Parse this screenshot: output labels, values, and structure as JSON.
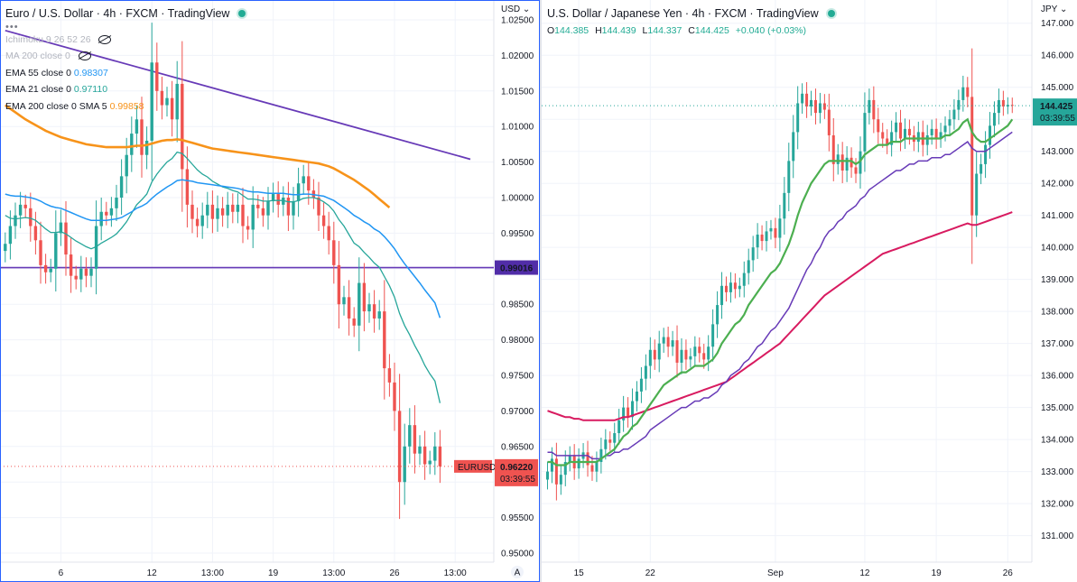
{
  "left": {
    "title": "Euro / U.S. Dollar · 4h · FXCM · TradingView",
    "currency": "USD",
    "indicators": [
      {
        "label": "Ichimoku 9 26 52 26",
        "value": "",
        "color": "#b2b5be",
        "hidden": true
      },
      {
        "label": "MA 200 close 0",
        "value": "",
        "color": "#b2b5be",
        "hidden": true
      },
      {
        "label": "EMA 55 close 0",
        "value": "0.98307",
        "color": "#2196f3",
        "hidden": false
      },
      {
        "label": "EMA 21 close 0",
        "value": "0.97110",
        "color": "#26a69a",
        "hidden": false
      },
      {
        "label": "EMA 200 close 0 SMA 5",
        "value": "0.99858",
        "color": "#f7931a",
        "hidden": false
      }
    ],
    "hline_label": "0.99016",
    "symbol_tag": "EURUSD",
    "price_tag": "0.96220",
    "countdown": "03:39:55",
    "auto_button": "A",
    "chart_data": {
      "type": "candlestick",
      "ylim": [
        0.95,
        1.025
      ],
      "y_ticks": [
        "1.02500",
        "1.02000",
        "1.01500",
        "1.01000",
        "1.00500",
        "1.00000",
        "0.99500",
        "0.99000",
        "0.98500",
        "0.98000",
        "0.97500",
        "0.97000",
        "0.96500",
        "0.96000",
        "0.95500",
        "0.95000"
      ],
      "x_ticks": [
        {
          "label": "6",
          "bar": 11
        },
        {
          "label": "12",
          "bar": 29
        },
        {
          "label": "13:00",
          "bar": 41
        },
        {
          "label": "19",
          "bar": 53
        },
        {
          "label": "13:00",
          "bar": 65
        },
        {
          "label": "26",
          "bar": 77
        },
        {
          "label": "13:00",
          "bar": 89
        }
      ],
      "last_price": 0.9622,
      "horizontal_line": 0.99016,
      "trendline": [
        {
          "bar": 0,
          "price": 1.0235
        },
        {
          "bar": 92,
          "price": 1.0054
        }
      ],
      "closes": [
        0.9935,
        0.996,
        0.9975,
        0.999,
        0.9985,
        0.996,
        0.994,
        0.9905,
        0.9895,
        0.99,
        0.995,
        0.9965,
        0.992,
        0.989,
        0.9885,
        0.99,
        0.989,
        0.99,
        0.996,
        0.998,
        0.9975,
        0.9985,
        1.0,
        1.003,
        1.006,
        1.009,
        1.011,
        1.006,
        1.008,
        1.019,
        1.015,
        1.013,
        1.014,
        1.011,
        1.016,
        1.004,
        0.999,
        0.997,
        0.996,
        0.9975,
        0.999,
        0.997,
        0.9985,
        0.9975,
        0.999,
        0.998,
        0.999,
        0.996,
        0.9955,
        0.999,
        0.9985,
        0.9975,
        0.9995,
        1.0005,
        0.999,
        1.0,
        0.9975,
        0.9995,
        1.002,
        1.003,
        1.001,
        1.0,
        0.9975,
        0.996,
        0.994,
        0.9905,
        0.985,
        0.986,
        0.983,
        0.982,
        0.988,
        0.984,
        0.985,
        0.983,
        0.984,
        0.976,
        0.974,
        0.97,
        0.96,
        0.965,
        0.968,
        0.964,
        0.965,
        0.9625,
        0.963,
        0.965,
        0.9622
      ],
      "ema21": [
        0.9975,
        0.9971,
        0.997,
        0.9971,
        0.9972,
        0.9971,
        0.9968,
        0.9962,
        0.9956,
        0.9951,
        0.9951,
        0.9952,
        0.9949,
        0.9944,
        0.9939,
        0.9935,
        0.9931,
        0.9928,
        0.9931,
        0.9936,
        0.994,
        0.9944,
        0.9949,
        0.9957,
        0.9966,
        0.9978,
        0.999,
        0.9997,
        1.0005,
        1.0022,
        1.0033,
        1.0042,
        1.005,
        1.0055,
        1.0064,
        1.0062,
        1.0055,
        1.0047,
        1.0039,
        1.0033,
        1.0029,
        1.0023,
        1.0019,
        1.0015,
        1.0013,
        1.001,
        1.0008,
        1.0003,
        0.9998,
        0.9998,
        0.9997,
        0.9995,
        0.9995,
        0.9996,
        0.9996,
        0.9996,
        0.9994,
        0.9994,
        0.9996,
        0.9999,
        1.0,
        1.0,
        0.9998,
        0.9994,
        0.9989,
        0.9981,
        0.9969,
        0.996,
        0.9948,
        0.9936,
        0.9931,
        0.9923,
        0.9916,
        0.9908,
        0.9902,
        0.9889,
        0.9876,
        0.986,
        0.9837,
        0.982,
        0.9807,
        0.9792,
        0.9779,
        0.9764,
        0.9752,
        0.9742,
        0.9711
      ],
      "ema55": [
        1.0005,
        1.0003,
        1.0002,
        1.0002,
        1.0001,
        1.0,
        0.9998,
        0.9995,
        0.9991,
        0.9988,
        0.9986,
        0.9985,
        0.9982,
        0.9979,
        0.9976,
        0.9973,
        0.997,
        0.9968,
        0.9968,
        0.9968,
        0.9968,
        0.9969,
        0.997,
        0.9972,
        0.9976,
        0.998,
        0.9985,
        0.9988,
        0.9992,
        0.9999,
        1.0005,
        1.001,
        1.0015,
        1.0019,
        1.0024,
        1.0025,
        1.0024,
        1.0023,
        1.0021,
        1.002,
        1.0019,
        1.0018,
        1.0017,
        1.0016,
        1.0015,
        1.0014,
        1.0013,
        1.0011,
        1.0009,
        1.0008,
        1.0008,
        1.0007,
        1.0006,
        1.0006,
        1.0006,
        1.0006,
        1.0005,
        1.0004,
        1.0004,
        1.0005,
        1.0005,
        1.0004,
        1.0003,
        1.0002,
        0.9999,
        0.9996,
        0.9991,
        0.9986,
        0.9981,
        0.9975,
        0.9971,
        0.9966,
        0.9962,
        0.9956,
        0.9952,
        0.9945,
        0.9937,
        0.9928,
        0.9917,
        0.9907,
        0.9898,
        0.9889,
        0.988,
        0.987,
        0.9861,
        0.9852,
        0.9831
      ],
      "ema200_sma5": [
        1.013,
        1.0125,
        1.012,
        1.0115,
        1.011,
        1.0106,
        1.0102,
        1.0098,
        1.0094,
        1.0091,
        1.0088,
        1.0085,
        1.0083,
        1.0081,
        1.0079,
        1.0077,
        1.0075,
        1.0074,
        1.0073,
        1.0072,
        1.0071,
        1.0071,
        1.0071,
        1.0071,
        1.0071,
        1.0072,
        1.0073,
        1.0073,
        1.0074,
        1.0076,
        1.0078,
        1.008,
        1.0081,
        1.0081,
        1.0082,
        1.0081,
        1.0079,
        1.0077,
        1.0075,
        1.0073,
        1.0071,
        1.0069,
        1.0068,
        1.0067,
        1.0066,
        1.0065,
        1.0064,
        1.0063,
        1.0062,
        1.0061,
        1.006,
        1.0059,
        1.0058,
        1.0057,
        1.0056,
        1.0055,
        1.0054,
        1.0053,
        1.0052,
        1.0051,
        1.005,
        1.0049,
        1.0048,
        1.0046,
        1.0044,
        1.0041,
        1.0037,
        1.0033,
        1.0029,
        1.0025,
        1.002,
        1.0015,
        1.001,
        1.0004,
        0.9998,
        0.9992,
        0.9986
      ]
    }
  },
  "right": {
    "title": "U.S. Dollar / Japanese Yen · 4h · FXCM · TradingView",
    "currency": "JPY",
    "ohlc": {
      "o_label": "O",
      "o": "144.385",
      "h_label": "H",
      "h": "144.439",
      "l_label": "L",
      "l": "144.337",
      "c_label": "C",
      "c": "144.425",
      "change": "+0.040 (+0.03%)"
    },
    "price_tag": "144.425",
    "countdown": "03:39:55",
    "chart_data": {
      "type": "candlestick",
      "ylim": [
        130.2,
        147.5
      ],
      "y_ticks": [
        "147.000",
        "146.000",
        "145.000",
        "144.000",
        "143.000",
        "142.000",
        "141.000",
        "140.000",
        "139.000",
        "138.000",
        "137.000",
        "136.000",
        "135.000",
        "134.000",
        "133.000",
        "132.000",
        "131.000"
      ],
      "x_ticks": [
        {
          "label": "15",
          "bar": 7
        },
        {
          "label": "22",
          "bar": 23
        },
        {
          "label": "Sep",
          "bar": 51
        },
        {
          "label": "12",
          "bar": 71
        },
        {
          "label": "19",
          "bar": 87
        },
        {
          "label": "26",
          "bar": 103
        }
      ],
      "last_price": 144.425,
      "closes": [
        133.0,
        133.4,
        132.6,
        132.9,
        133.3,
        133.5,
        133.1,
        133.4,
        133.6,
        133.2,
        133.0,
        133.3,
        133.7,
        134.0,
        133.9,
        134.2,
        134.6,
        135.0,
        134.7,
        135.2,
        135.5,
        135.9,
        136.3,
        136.8,
        136.5,
        137.0,
        137.2,
        136.9,
        137.1,
        136.4,
        136.8,
        136.5,
        136.6,
        136.9,
        136.7,
        136.5,
        136.9,
        137.6,
        138.2,
        138.8,
        138.6,
        138.9,
        138.7,
        138.8,
        139.2,
        139.6,
        140.0,
        140.4,
        140.2,
        140.5,
        140.6,
        140.3,
        140.9,
        141.7,
        142.7,
        143.6,
        144.5,
        144.8,
        144.4,
        144.6,
        144.2,
        144.5,
        144.3,
        143.5,
        142.6,
        142.9,
        142.4,
        142.8,
        142.5,
        142.3,
        143.0,
        144.2,
        144.6,
        144.0,
        143.6,
        143.4,
        143.2,
        143.6,
        143.9,
        143.4,
        143.7,
        143.5,
        143.3,
        143.6,
        143.2,
        143.5,
        143.7,
        143.4,
        143.6,
        143.8,
        144.0,
        144.3,
        144.6,
        145.0,
        144.7,
        141.0,
        142.3,
        142.6,
        143.2,
        143.8,
        144.2,
        144.6,
        144.4,
        144.45,
        144.425
      ],
      "ema_green": [
        133.3,
        133.3,
        133.2,
        133.2,
        133.2,
        133.3,
        133.3,
        133.3,
        133.3,
        133.3,
        133.3,
        133.3,
        133.4,
        133.5,
        133.6,
        133.7,
        133.9,
        134.1,
        134.2,
        134.4,
        134.5,
        134.7,
        134.9,
        135.1,
        135.3,
        135.5,
        135.7,
        135.8,
        135.9,
        136.0,
        136.1,
        136.1,
        136.2,
        136.3,
        136.3,
        136.3,
        136.4,
        136.5,
        136.7,
        137.0,
        137.2,
        137.4,
        137.6,
        137.7,
        137.9,
        138.2,
        138.4,
        138.6,
        138.8,
        139.0,
        139.2,
        139.3,
        139.5,
        139.8,
        140.1,
        140.5,
        141.0,
        141.4,
        141.7,
        142.0,
        142.2,
        142.4,
        142.6,
        142.7,
        142.7,
        142.7,
        142.7,
        142.7,
        142.7,
        142.6,
        142.7,
        142.9,
        143.0,
        143.1,
        143.2,
        143.2,
        143.2,
        143.3,
        143.3,
        143.3,
        143.4,
        143.4,
        143.4,
        143.4,
        143.4,
        143.4,
        143.4,
        143.4,
        143.4,
        143.5,
        143.5,
        143.6,
        143.7,
        143.9,
        144.0,
        143.6,
        143.4,
        143.3,
        143.3,
        143.4,
        143.5,
        143.6,
        143.7,
        143.8,
        144.0
      ],
      "ema_purple": [
        133.6,
        133.6,
        133.5,
        133.5,
        133.5,
        133.5,
        133.5,
        133.5,
        133.5,
        133.5,
        133.4,
        133.4,
        133.4,
        133.5,
        133.5,
        133.6,
        133.6,
        133.7,
        133.7,
        133.8,
        133.9,
        134.0,
        134.1,
        134.3,
        134.4,
        134.5,
        134.6,
        134.7,
        134.8,
        134.9,
        135.0,
        135.0,
        135.1,
        135.2,
        135.2,
        135.3,
        135.3,
        135.4,
        135.5,
        135.7,
        135.8,
        136.0,
        136.1,
        136.2,
        136.4,
        136.5,
        136.7,
        136.9,
        137.0,
        137.2,
        137.4,
        137.5,
        137.7,
        137.9,
        138.1,
        138.4,
        138.7,
        139.0,
        139.3,
        139.5,
        139.8,
        140.0,
        140.3,
        140.5,
        140.6,
        140.8,
        140.9,
        141.1,
        141.2,
        141.3,
        141.5,
        141.6,
        141.8,
        141.9,
        142.0,
        142.1,
        142.2,
        142.3,
        142.4,
        142.4,
        142.5,
        142.6,
        142.6,
        142.7,
        142.7,
        142.7,
        142.8,
        142.8,
        142.8,
        142.9,
        142.9,
        143.0,
        143.1,
        143.2,
        143.3,
        143.1,
        143.0,
        143.0,
        143.0,
        143.1,
        143.2,
        143.3,
        143.4,
        143.5,
        143.6
      ],
      "ema_crimson": [
        134.9,
        134.85,
        134.8,
        134.75,
        134.7,
        134.7,
        134.65,
        134.65,
        134.6,
        134.6,
        134.6,
        134.6,
        134.6,
        134.6,
        134.6,
        134.6,
        134.65,
        134.7,
        134.7,
        134.75,
        134.8,
        134.85,
        134.9,
        134.95,
        135.0,
        135.05,
        135.1,
        135.15,
        135.2,
        135.25,
        135.3,
        135.35,
        135.4,
        135.45,
        135.5,
        135.55,
        135.6,
        135.65,
        135.7,
        135.75,
        135.8,
        135.9,
        136.0,
        136.1,
        136.2,
        136.3,
        136.4,
        136.5,
        136.6,
        136.7,
        136.8,
        136.9,
        137.0,
        137.15,
        137.3,
        137.45,
        137.6,
        137.75,
        137.9,
        138.05,
        138.2,
        138.35,
        138.5,
        138.6,
        138.7,
        138.8,
        138.9,
        139.0,
        139.1,
        139.2,
        139.3,
        139.4,
        139.5,
        139.6,
        139.7,
        139.8,
        139.85,
        139.9,
        139.95,
        140.0,
        140.05,
        140.1,
        140.15,
        140.2,
        140.25,
        140.3,
        140.35,
        140.4,
        140.45,
        140.5,
        140.55,
        140.6,
        140.65,
        140.7,
        140.75,
        140.7,
        140.7,
        140.75,
        140.8,
        140.85,
        140.9,
        140.95,
        141.0,
        141.05,
        141.1
      ]
    }
  }
}
